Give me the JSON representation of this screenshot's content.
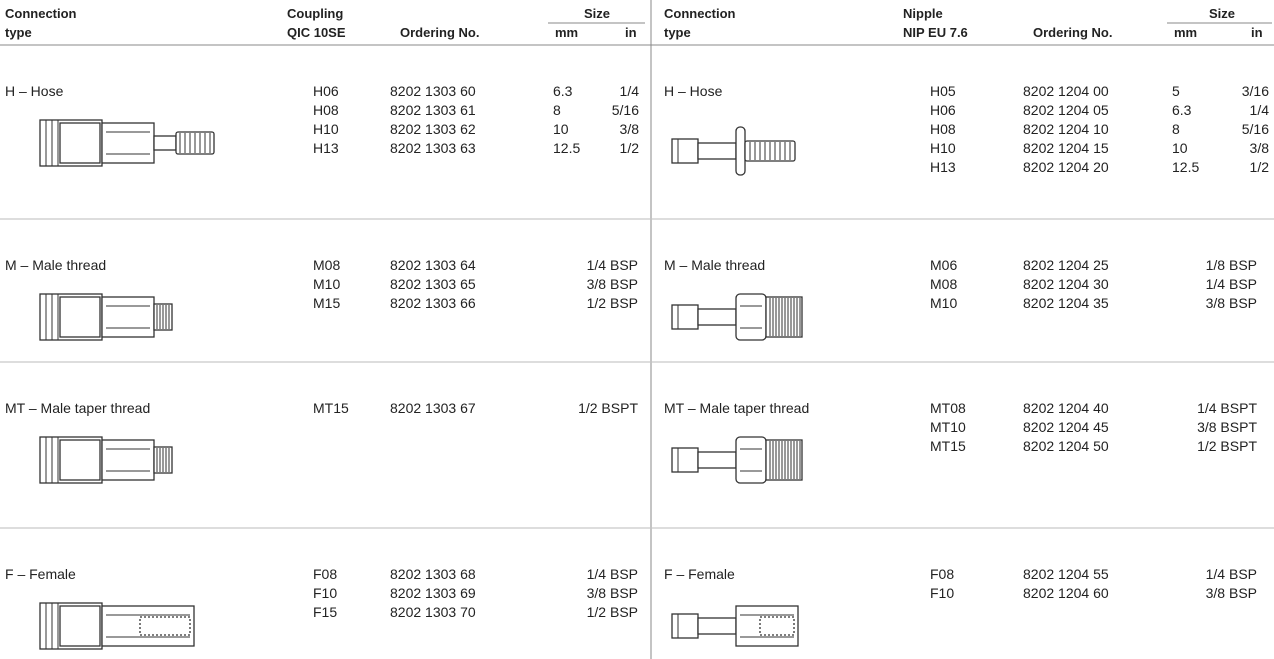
{
  "left": {
    "header": {
      "connection": [
        "Connection",
        "type"
      ],
      "part": [
        "Coupling",
        "QIC 10SE"
      ],
      "ordering": "Ordering No.",
      "size": "Size",
      "mm": "mm",
      "in": "in"
    },
    "rows": [
      {
        "type": "H – Hose",
        "codes": [
          "H06",
          "H08",
          "H10",
          "H13"
        ],
        "ordering": [
          "8202 1303 60",
          "8202 1303 61",
          "8202 1303 62",
          "8202 1303 63"
        ],
        "mm": [
          "6.3",
          "8",
          "10",
          "12.5"
        ],
        "in": [
          "1/4",
          "5/16",
          "3/8",
          "1/2"
        ]
      },
      {
        "type": "M – Male thread",
        "codes": [
          "M08",
          "M10",
          "M15"
        ],
        "ordering": [
          "8202 1303 64",
          "8202 1303 65",
          "8202 1303 66"
        ],
        "size": [
          "1/4 BSP",
          "3/8 BSP",
          "1/2 BSP"
        ]
      },
      {
        "type": "MT – Male taper thread",
        "codes": [
          "MT15"
        ],
        "ordering": [
          "8202 1303 67"
        ],
        "size": [
          "1/2 BSPT"
        ]
      },
      {
        "type": "F – Female",
        "codes": [
          "F08",
          "F10",
          "F15"
        ],
        "ordering": [
          "8202 1303 68",
          "8202 1303 69",
          "8202 1303 70"
        ],
        "size": [
          "1/4 BSP",
          "3/8 BSP",
          "1/2 BSP"
        ]
      }
    ]
  },
  "right": {
    "header": {
      "connection": [
        "Connection",
        "type"
      ],
      "part": [
        "Nipple",
        "NIP EU 7.6"
      ],
      "ordering": "Ordering No.",
      "size": "Size",
      "mm": "mm",
      "in": "in"
    },
    "rows": [
      {
        "type": "H – Hose",
        "codes": [
          "H05",
          "H06",
          "H08",
          "H10",
          "H13"
        ],
        "ordering": [
          "8202 1204 00",
          "8202 1204 05",
          "8202 1204 10",
          "8202 1204 15",
          "8202 1204 20"
        ],
        "mm": [
          "5",
          "6.3",
          "8",
          "10",
          "12.5"
        ],
        "in": [
          "3/16",
          "1/4",
          "5/16",
          "3/8",
          "1/2"
        ]
      },
      {
        "type": "M – Male thread",
        "codes": [
          "M06",
          "M08",
          "M10"
        ],
        "ordering": [
          "8202 1204 25",
          "8202 1204 30",
          "8202 1204 35"
        ],
        "size": [
          "1/8 BSP",
          "1/4 BSP",
          "3/8 BSP"
        ]
      },
      {
        "type": "MT – Male taper thread",
        "codes": [
          "MT08",
          "MT10",
          "MT15"
        ],
        "ordering": [
          "8202 1204 40",
          "8202 1204 45",
          "8202 1204 50"
        ],
        "size": [
          "1/4 BSPT",
          "3/8 BSPT",
          "1/2 BSPT"
        ]
      },
      {
        "type": "F – Female",
        "codes": [
          "F08",
          "F10"
        ],
        "ordering": [
          "8202 1204 55",
          "8202 1204 60"
        ],
        "size": [
          "1/4 BSP",
          "3/8 BSP"
        ]
      }
    ]
  }
}
